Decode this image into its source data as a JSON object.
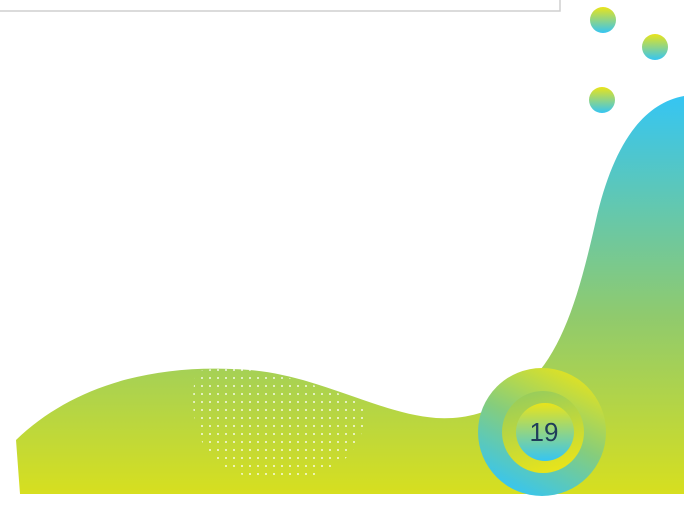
{
  "page": {
    "number": "19"
  },
  "colors": {
    "blue": "#35c5f3",
    "green": "#9ccb5a",
    "yellow": "#e2e21c",
    "frame_border": "#cfcfcf",
    "number_text": "#1f3d5a"
  },
  "decor": {
    "icons": [
      "gradient-dot-icon",
      "gradient-dot-icon",
      "gradient-dot-icon",
      "page-number-ring-icon"
    ]
  }
}
